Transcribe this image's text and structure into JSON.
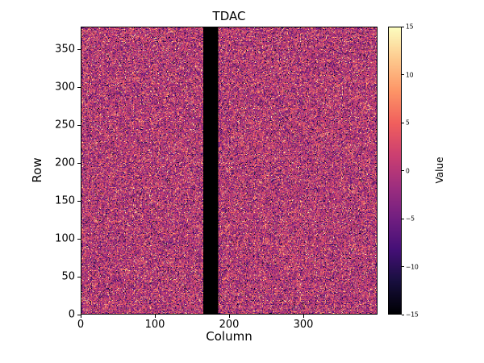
{
  "chart_data": {
    "type": "heatmap",
    "title": "TDAC",
    "xlabel": "Column",
    "ylabel": "Row",
    "colorbar_label": "Value",
    "n_cols": 400,
    "n_rows": 380,
    "x_range": [
      0,
      400
    ],
    "y_range": [
      0,
      380
    ],
    "value_range": [
      -15,
      15
    ],
    "x_ticks": [
      0,
      100,
      200,
      300
    ],
    "y_ticks": [
      0,
      50,
      100,
      150,
      200,
      250,
      300,
      350
    ],
    "colorbar_ticks": [
      15,
      10,
      5,
      0,
      -5,
      -10,
      -15
    ],
    "colormap": "magma",
    "colormap_stops": [
      "#000004",
      "#180f3e",
      "#451077",
      "#721f81",
      "#9f2f7f",
      "#cd4071",
      "#f1605d",
      "#fd9567",
      "#fec98d",
      "#fcfdbf"
    ],
    "data_description": "per-pixel random noise centered near 0 spanning roughly -15..15, rendered with the magma colormap; a solid black vertical band (masked/dead columns) spans approximately columns 165-185",
    "masked_columns": [
      165,
      185
    ],
    "masked_value_color": "#000000",
    "noise": {
      "distribution": "gaussian-with-uniform-outliers",
      "mean": 0,
      "std": 4.2,
      "outlier_fraction": 0.22,
      "seed": 1234567
    },
    "background_color": "#ffffff",
    "axis_color": "#000000"
  }
}
